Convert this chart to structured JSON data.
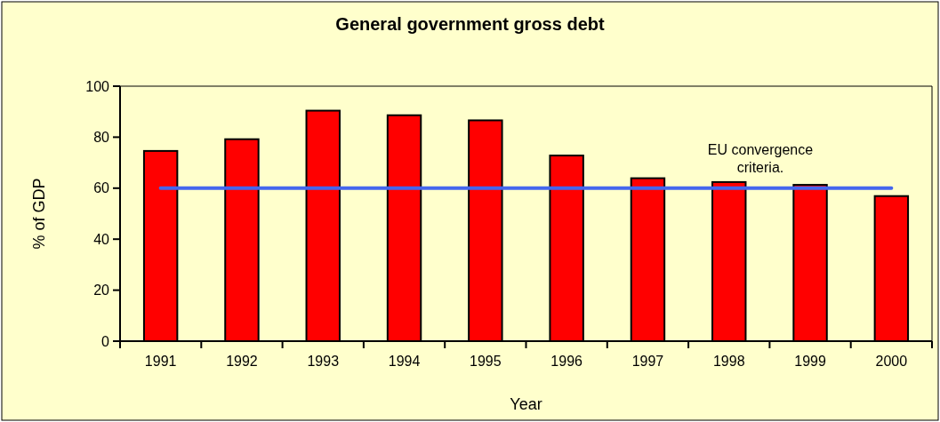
{
  "chart_data": {
    "type": "bar",
    "title": "General government gross debt",
    "xlabel": "Year",
    "ylabel": "% of GDP",
    "categories": [
      "1991",
      "1992",
      "1993",
      "1994",
      "1995",
      "1996",
      "1997",
      "1998",
      "1999",
      "2000"
    ],
    "values": [
      74.6,
      79.2,
      90.4,
      88.6,
      86.6,
      72.8,
      63.9,
      62.4,
      61.3,
      56.9
    ],
    "color": "#ff0000",
    "ylim": [
      0,
      100
    ],
    "yticks": [
      0,
      20,
      40,
      60,
      80,
      100
    ],
    "ref_lines": [
      {
        "axis": "y",
        "value": 60,
        "label": "EU convergence criteria.",
        "color": "#4466ee"
      }
    ]
  }
}
